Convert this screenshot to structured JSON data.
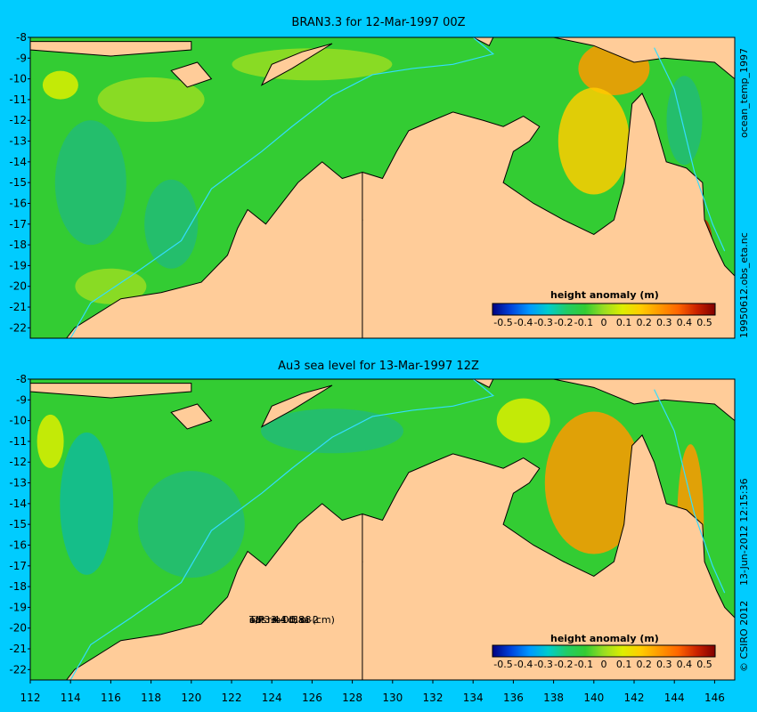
{
  "panels": [
    {
      "title": "BRAN3.3 for 12-Mar-1997 00Z",
      "colorbar_label": "height anomaly (m)",
      "side_labels": [
        "ocean_temp_1997",
        "19950612.obs_eta.nc"
      ]
    },
    {
      "title": "Au3 sea level  for 13-Mar-1997 12Z",
      "colorbar_label": "height anomaly (m)",
      "side_labels": [
        "13-Jun-2012 12:15:36",
        "© CSIRO 2012"
      ],
      "annotation": [
        "obs +-1d, oi-2",
        "sat rms bias (cm)",
        "T/P  3.4 0.38",
        "all 3.4 0.38"
      ]
    }
  ],
  "colorbar_ticks": [
    "-0.5",
    "-0.4",
    "-0.3",
    "-0.2",
    "-0.1",
    "0",
    "0.1",
    "0.2",
    "0.3",
    "0.4",
    "0.5"
  ],
  "lat_ticks": [
    "-8",
    "-9",
    "-10",
    "-11",
    "-12",
    "-13",
    "-14",
    "-15",
    "-16",
    "-17",
    "-18",
    "-19",
    "-20",
    "-21",
    "-22"
  ],
  "lon_ticks": [
    "112",
    "114",
    "116",
    "118",
    "120",
    "122",
    "124",
    "126",
    "128",
    "130",
    "132",
    "134",
    "136",
    "138",
    "140",
    "142",
    "144",
    "146"
  ],
  "colors": {
    "background": "#00ccff",
    "land": "#ffcc99",
    "ocean_base": "#33cc33",
    "colormap": [
      "#000080",
      "#0044dd",
      "#0099ff",
      "#00cccc",
      "#22cc66",
      "#33cc33",
      "#99dd22",
      "#ddee00",
      "#ffcc00",
      "#ff9900",
      "#ff6600",
      "#cc2200",
      "#800000"
    ]
  }
}
